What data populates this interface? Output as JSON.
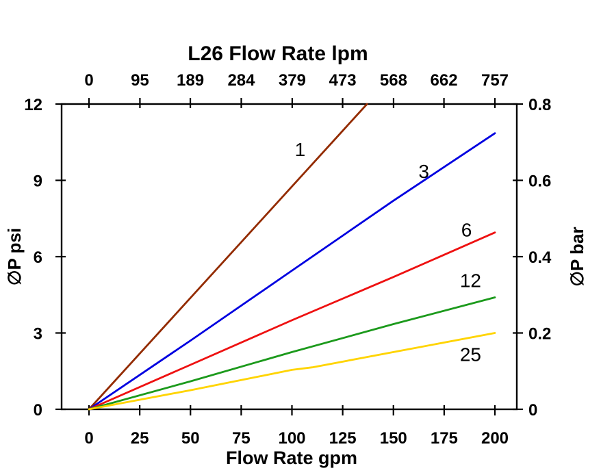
{
  "page": {
    "background": "#FFFFFF",
    "text_color": "#000000"
  },
  "chart_data": {
    "type": "line",
    "title": "L26 Flow Rate lpm",
    "xlabel_bottom": "Flow Rate gpm",
    "ylabel_left": "∅P psi",
    "ylabel_right": "∅P bar",
    "grid": false,
    "plot_border_color": "#000000",
    "axes": {
      "x_bottom": {
        "label": "Flow Rate gpm",
        "range": [
          0,
          200
        ],
        "ticks": [
          0,
          25,
          50,
          75,
          100,
          125,
          150,
          175,
          200
        ]
      },
      "x_top": {
        "label": "L26 Flow Rate lpm",
        "range": [
          0,
          757
        ],
        "ticks": [
          0,
          95,
          189,
          284,
          379,
          473,
          568,
          662,
          757
        ]
      },
      "y_left": {
        "label": "∅P psi",
        "range": [
          0,
          12
        ],
        "ticks": [
          0,
          3,
          6,
          9,
          12
        ]
      },
      "y_right": {
        "label": "∅P bar",
        "range": [
          0,
          0.8
        ],
        "ticks": [
          0,
          0.2,
          0.4,
          0.6,
          0.8
        ]
      }
    },
    "series": [
      {
        "name": "1",
        "color": "#932B00",
        "points": [
          [
            0,
            0
          ],
          [
            137,
            12
          ]
        ],
        "label": {
          "x": 104,
          "y": 9.95
        }
      },
      {
        "name": "3",
        "color": "#0000E0",
        "points": [
          [
            0,
            0
          ],
          [
            50,
            2.7
          ],
          [
            100,
            5.45
          ],
          [
            150,
            8.2
          ],
          [
            200,
            10.85
          ]
        ],
        "label": {
          "x": 165,
          "y": 9.1
        }
      },
      {
        "name": "6",
        "color": "#EE1111",
        "points": [
          [
            0,
            0
          ],
          [
            50,
            1.75
          ],
          [
            100,
            3.5
          ],
          [
            150,
            5.2
          ],
          [
            200,
            6.95
          ]
        ],
        "label": {
          "x": 186,
          "y": 6.8
        }
      },
      {
        "name": "12",
        "color": "#1C9A1C",
        "points": [
          [
            0,
            0
          ],
          [
            50,
            1.1
          ],
          [
            100,
            2.25
          ],
          [
            150,
            3.35
          ],
          [
            200,
            4.4
          ]
        ],
        "label": {
          "x": 188,
          "y": 4.8
        }
      },
      {
        "name": "25",
        "color": "#FFD400",
        "points": [
          [
            0,
            0
          ],
          [
            50,
            0.75
          ],
          [
            100,
            1.55
          ],
          [
            110,
            1.65
          ],
          [
            150,
            2.25
          ],
          [
            200,
            3.0
          ]
        ],
        "label": {
          "x": 188,
          "y": 1.9
        }
      }
    ]
  }
}
